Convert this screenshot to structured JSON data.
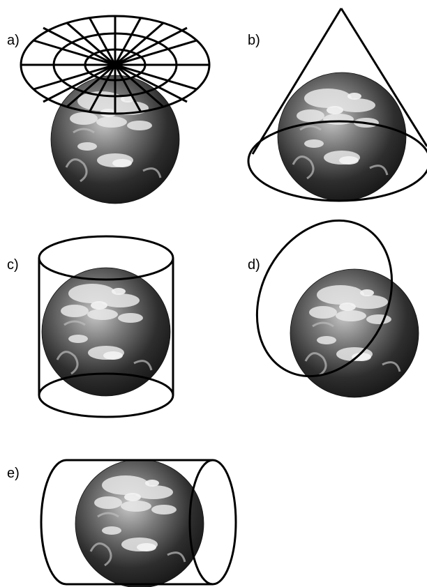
{
  "panels": [
    {
      "label": "a)"
    },
    {
      "label": "b)"
    },
    {
      "label": "c)"
    },
    {
      "label": "d)"
    },
    {
      "label": "e)"
    }
  ]
}
